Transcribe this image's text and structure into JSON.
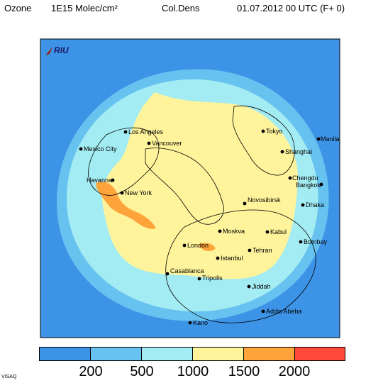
{
  "header": {
    "field": "Ozone",
    "unit": "1E15 Molec/cm²",
    "quantity": "Col.Dens",
    "datetime": "01.07.2012 00 UTC (F+ 0)"
  },
  "logo_text": "RIU",
  "footer_text": "VISAQ",
  "colors": {
    "ocean_frame": "#ffffff",
    "band_1": "#3d93e6",
    "band_2": "#67c2f0",
    "band_3": "#a4ecf3",
    "band_4": "#fff39b",
    "band_5": "#ffa33b",
    "band_6": "#ff4a3a"
  },
  "colorbar": {
    "colors": [
      "#3d93e6",
      "#67c2f0",
      "#a4ecf3",
      "#fff39b",
      "#ffa33b",
      "#ff4a3a"
    ],
    "ticks": [
      "200",
      "500",
      "1000",
      "1500",
      "2000"
    ]
  },
  "cities": [
    {
      "name": "Los Angeles"
    },
    {
      "name": "Tokyo"
    },
    {
      "name": "Mexico City"
    },
    {
      "name": "Vancouver"
    },
    {
      "name": "Manila"
    },
    {
      "name": "Shanghai"
    },
    {
      "name": "Havanna"
    },
    {
      "name": "Chengdu"
    },
    {
      "name": "Bangkok"
    },
    {
      "name": "New York"
    },
    {
      "name": "Novosibirsk"
    },
    {
      "name": "Dhaka"
    },
    {
      "name": "Moskva"
    },
    {
      "name": "Kabul"
    },
    {
      "name": "Bombay"
    },
    {
      "name": "London"
    },
    {
      "name": "Tehran"
    },
    {
      "name": "Istanbul"
    },
    {
      "name": "Casablanca"
    },
    {
      "name": "Tripolis"
    },
    {
      "name": "Jiddah"
    },
    {
      "name": "Addis Abeba"
    },
    {
      "name": "Kano"
    }
  ]
}
